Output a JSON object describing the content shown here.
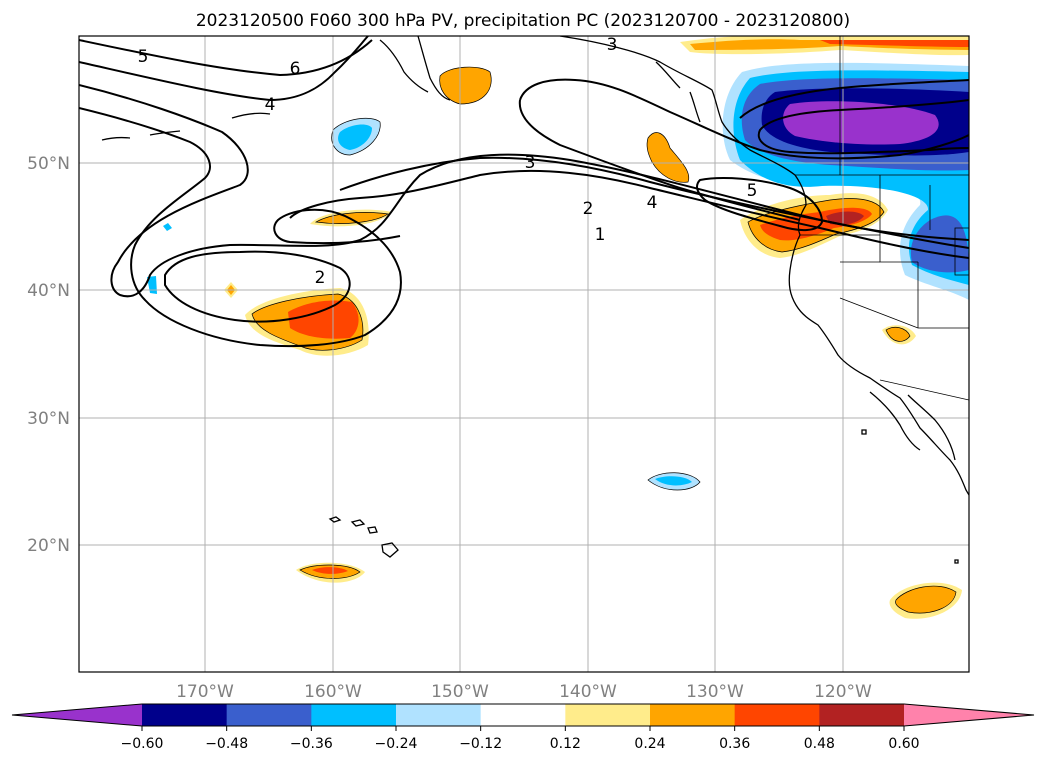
{
  "title": "2023120500 F060 300 hPa PV, precipitation PC (2023120700 - 2023120800)",
  "map": {
    "lat_labels": [
      "50°N",
      "40°N",
      "30°N",
      "20°N"
    ],
    "lon_labels": [
      "170°W",
      "160°W",
      "150°W",
      "140°W",
      "130°W",
      "120°W"
    ],
    "grid": true,
    "pv_contour_labels": [
      "5",
      "6",
      "4",
      "3",
      "2",
      "1",
      "5",
      "2",
      "3"
    ]
  },
  "colorbar": {
    "ticks": [
      "−0.60",
      "−0.48",
      "−0.36",
      "−0.24",
      "−0.12",
      "0.12",
      "0.24",
      "0.36",
      "0.48",
      "0.60"
    ],
    "colors": [
      "#9932cc",
      "#00008b",
      "#3a5fcd",
      "#00bfff",
      "#b0e2ff",
      "#ffffff",
      "#ffec8b",
      "#ffa500",
      "#ff4500",
      "#b22222",
      "#ff82ab"
    ],
    "extend": "both"
  }
}
